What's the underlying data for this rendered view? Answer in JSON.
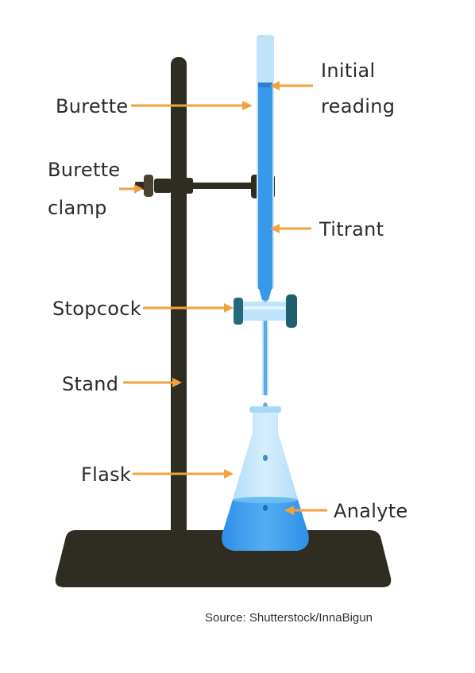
{
  "labels": {
    "burette": "Burette",
    "burette_clamp_line1": "Burette",
    "burette_clamp_line2": "clamp",
    "stopcock": "Stopcock",
    "stand": "Stand",
    "flask": "Flask",
    "initial_reading_line1": "Initial",
    "initial_reading_line2": "reading",
    "titrant": "Titrant",
    "analyte": "Analyte"
  },
  "source": "Source: Shutterstock/InnaBigun",
  "colors": {
    "stand": "#2f2d22",
    "liquid": "#2f8fe8",
    "glass": "#bfe3fb",
    "arrow": "#f2a23c",
    "text": "#2b2b2b"
  }
}
